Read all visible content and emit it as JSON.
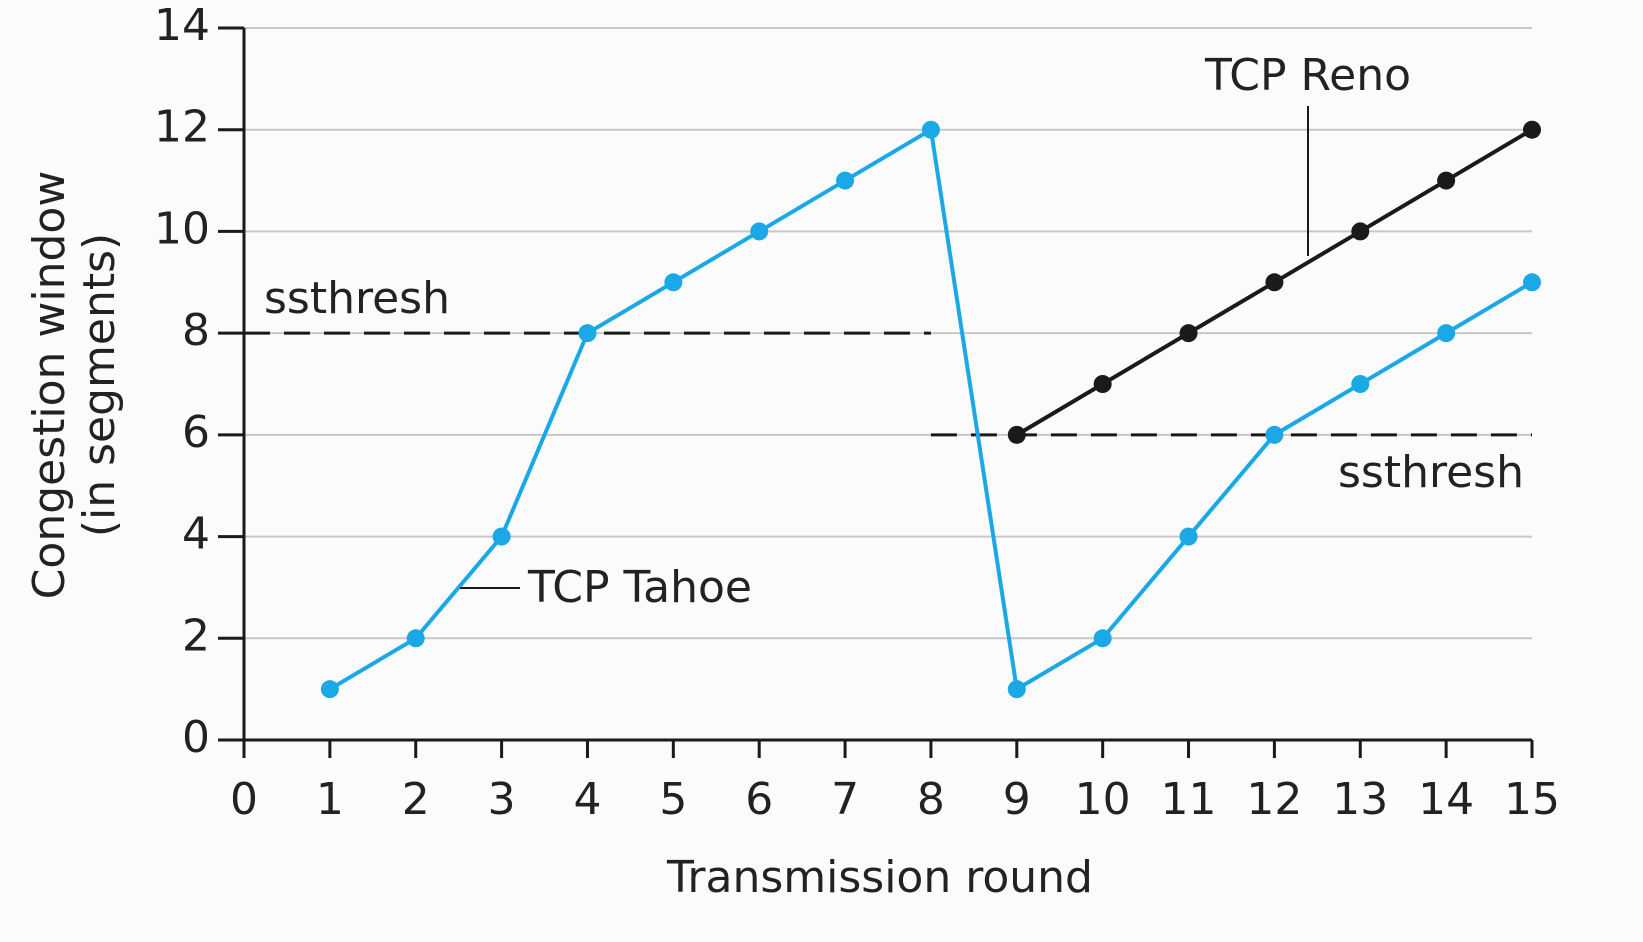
{
  "chart_data": {
    "type": "line",
    "xlabel": "Transmission round",
    "ylabel": [
      "Congestion window",
      "(in segments)"
    ],
    "xlim": [
      0,
      15
    ],
    "xticks": [
      0,
      1,
      2,
      3,
      4,
      5,
      6,
      7,
      8,
      9,
      10,
      11,
      12,
      13,
      14,
      15
    ],
    "ylim": [
      0,
      14
    ],
    "yticks": [
      0,
      2,
      4,
      6,
      8,
      10,
      12,
      14
    ],
    "grid": true,
    "series": [
      {
        "name": "TCP Tahoe",
        "color": "#1ba8e6",
        "x": [
          1,
          2,
          3,
          4,
          5,
          6,
          7,
          8,
          9,
          10,
          11,
          12,
          13,
          14,
          15
        ],
        "values": [
          1,
          2,
          4,
          8,
          9,
          10,
          11,
          12,
          1,
          2,
          4,
          6,
          7,
          8,
          9
        ]
      },
      {
        "name": "TCP Reno",
        "color": "#1a1a1a",
        "x": [
          9,
          10,
          11,
          12,
          13,
          14,
          15
        ],
        "values": [
          6,
          7,
          8,
          9,
          10,
          11,
          12
        ]
      }
    ],
    "thresholds": [
      {
        "label": "ssthresh",
        "value": 8,
        "x": [
          0,
          8
        ]
      },
      {
        "label": "ssthresh",
        "value": 6,
        "x": [
          8,
          15
        ]
      }
    ]
  }
}
